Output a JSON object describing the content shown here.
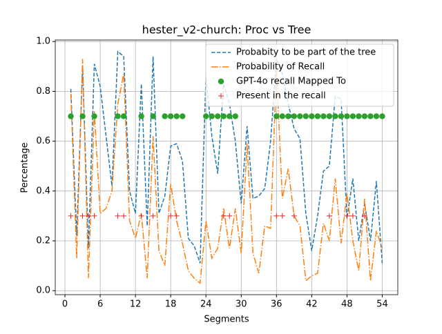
{
  "chart_data": {
    "type": "line",
    "title": "hester_v2-church: Proc vs Tree",
    "xlabel": "Segments",
    "ylabel": "Percentage",
    "x": [
      1,
      2,
      3,
      4,
      5,
      6,
      7,
      8,
      9,
      10,
      11,
      12,
      13,
      14,
      15,
      16,
      17,
      18,
      19,
      20,
      21,
      22,
      23,
      24,
      25,
      26,
      27,
      28,
      29,
      30,
      31,
      32,
      33,
      34,
      35,
      36,
      37,
      38,
      39,
      40,
      41,
      42,
      43,
      44,
      45,
      46,
      47,
      48,
      49,
      50,
      51,
      52,
      53,
      54
    ],
    "series": [
      {
        "name": "Probabity to be part of the tree",
        "color": "#1f77b4",
        "style": "dashed",
        "values": [
          0.81,
          0.22,
          0.9,
          0.17,
          0.91,
          0.82,
          0.62,
          0.42,
          0.96,
          0.94,
          0.4,
          0.31,
          0.83,
          0.26,
          0.94,
          0.31,
          0.38,
          0.58,
          0.59,
          0.52,
          0.21,
          0.18,
          0.11,
          0.86,
          0.62,
          0.47,
          0.83,
          0.75,
          0.6,
          0.35,
          0.66,
          0.37,
          0.38,
          0.41,
          0.6,
          0.93,
          0.87,
          0.75,
          0.65,
          0.61,
          0.31,
          0.16,
          0.3,
          0.48,
          0.5,
          0.78,
          0.77,
          0.29,
          0.45,
          0.2,
          0.35,
          0.2,
          0.44,
          0.11
        ]
      },
      {
        "name": "Probability of Recall",
        "color": "#ff7f0e",
        "style": "dashdot",
        "values": [
          0.79,
          0.13,
          0.93,
          0.05,
          0.72,
          0.31,
          0.33,
          0.4,
          0.75,
          0.87,
          0.28,
          0.21,
          0.31,
          0.05,
          0.62,
          0.16,
          0.1,
          0.43,
          0.28,
          0.19,
          0.08,
          0.05,
          0.03,
          0.28,
          0.13,
          0.17,
          0.33,
          0.17,
          0.33,
          0.15,
          0.59,
          0.15,
          0.07,
          0.26,
          0.25,
          0.89,
          0.37,
          0.49,
          0.3,
          0.26,
          0.04,
          0.06,
          0.07,
          0.27,
          0.2,
          0.45,
          0.19,
          0.39,
          0.2,
          0.08,
          0.37,
          0.04,
          0.24,
          0.17
        ]
      },
      {
        "name": "GPT-4o recall Mapped To",
        "color": "#2ca02c",
        "style": "circle",
        "x": [
          1,
          3,
          5,
          9,
          10,
          13,
          15,
          17,
          18,
          19,
          20,
          24,
          25,
          26,
          27,
          28,
          29,
          36,
          37,
          38,
          39,
          40,
          41,
          42,
          43,
          44,
          45,
          46,
          47,
          48,
          49,
          50,
          51,
          52,
          53,
          54
        ],
        "values": [
          0.7,
          0.7,
          0.7,
          0.7,
          0.7,
          0.7,
          0.7,
          0.7,
          0.7,
          0.7,
          0.7,
          0.7,
          0.7,
          0.7,
          0.7,
          0.7,
          0.7,
          0.7,
          0.7,
          0.7,
          0.7,
          0.7,
          0.7,
          0.7,
          0.7,
          0.7,
          0.7,
          0.7,
          0.7,
          0.7,
          0.7,
          0.7,
          0.7,
          0.7,
          0.7,
          0.7
        ]
      },
      {
        "name": "Present in the recall",
        "color": "#d62728",
        "style": "plus",
        "x": [
          1,
          3,
          4,
          5,
          9,
          10,
          13,
          15,
          18,
          19,
          27,
          28,
          36,
          37,
          39,
          45,
          48,
          49,
          51
        ],
        "values": [
          0.3,
          0.3,
          0.3,
          0.3,
          0.3,
          0.3,
          0.3,
          0.3,
          0.3,
          0.3,
          0.3,
          0.3,
          0.3,
          0.3,
          0.3,
          0.3,
          0.3,
          0.3,
          0.3
        ]
      }
    ],
    "xlim": [
      -1.65,
      56.65
    ],
    "xticks": [
      0,
      6,
      12,
      18,
      24,
      30,
      36,
      42,
      48,
      54
    ],
    "ylim": [
      -0.016,
      1.006
    ],
    "yticks": [
      {
        "value": 0,
        "label": "0.0"
      },
      0.2,
      0.4,
      0.6,
      0.8,
      {
        "value": 1,
        "label": "1.0"
      }
    ],
    "grid": true,
    "legend": "upper right"
  }
}
